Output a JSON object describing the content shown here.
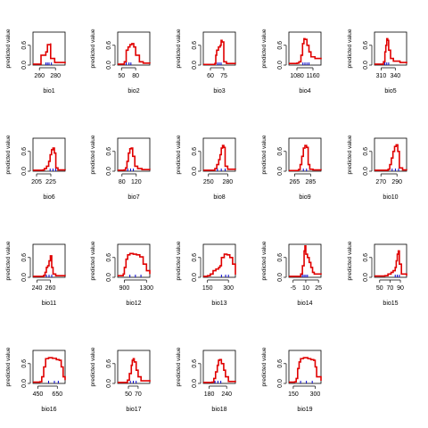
{
  "chart_data": [
    {
      "type": "line",
      "xlabel": "bio1",
      "ylabel": "predicted value",
      "xlim": [
        252,
        292
      ],
      "ylim": [
        0,
        1
      ],
      "xticks": [
        260,
        280
      ],
      "yticks": [
        0.0,
        0.6
      ],
      "x": [
        252,
        260,
        262,
        262,
        268,
        268,
        270,
        270,
        274,
        274,
        279,
        292
      ],
      "y": [
        0.03,
        0.03,
        0.06,
        0.3,
        0.36,
        0.4,
        0.45,
        0.62,
        0.66,
        0.2,
        0.08,
        0.05
      ],
      "rug": [
        268,
        270,
        272,
        275
      ]
    },
    {
      "type": "line",
      "xlabel": "bio2",
      "ylabel": "predicted value",
      "xlim": [
        42,
        110
      ],
      "ylim": [
        0,
        1
      ],
      "xticks": [
        50,
        80
      ],
      "yticks": [
        0.0,
        0.6
      ],
      "x": [
        42,
        53,
        56,
        60,
        64,
        68,
        72,
        76,
        80,
        88,
        96,
        110
      ],
      "y": [
        0.03,
        0.03,
        0.1,
        0.45,
        0.55,
        0.62,
        0.65,
        0.55,
        0.3,
        0.1,
        0.06,
        0.05
      ],
      "rug": [
        60,
        66,
        70
      ]
    },
    {
      "type": "line",
      "xlabel": "bio3",
      "ylabel": "predicted value",
      "xlim": [
        52,
        88
      ],
      "ylim": [
        0,
        1
      ],
      "xticks": [
        60,
        75
      ],
      "yticks": [
        0.0,
        0.6
      ],
      "x": [
        52,
        63,
        65,
        66,
        67,
        69,
        71,
        72,
        73,
        75,
        78,
        88
      ],
      "y": [
        0.02,
        0.02,
        0.05,
        0.3,
        0.45,
        0.55,
        0.6,
        0.75,
        0.7,
        0.1,
        0.05,
        0.04
      ],
      "rug": [
        68,
        70,
        72
      ]
    },
    {
      "type": "line",
      "xlabel": "bio4",
      "ylabel": "predicted value",
      "xlim": [
        1040,
        1200
      ],
      "ylim": [
        0,
        1
      ],
      "xticks": [
        1080,
        1160
      ],
      "yticks": [
        0.0,
        0.6
      ],
      "x": [
        1040,
        1080,
        1090,
        1100,
        1108,
        1115,
        1120,
        1130,
        1140,
        1150,
        1170,
        1200
      ],
      "y": [
        0.05,
        0.06,
        0.1,
        0.3,
        0.65,
        0.8,
        0.78,
        0.6,
        0.4,
        0.25,
        0.2,
        0.18
      ],
      "rug": [
        1110,
        1120,
        1130,
        1140
      ]
    },
    {
      "type": "line",
      "xlabel": "bio5",
      "ylabel": "predicted value",
      "xlim": [
        296,
        364
      ],
      "ylim": [
        0,
        1
      ],
      "xticks": [
        310,
        340
      ],
      "yticks": [
        0.0,
        0.6
      ],
      "x": [
        296,
        313,
        315,
        318,
        320,
        322,
        324,
        326,
        330,
        336,
        350,
        364
      ],
      "y": [
        0.03,
        0.03,
        0.1,
        0.4,
        0.6,
        0.8,
        0.75,
        0.45,
        0.2,
        0.12,
        0.08,
        0.05
      ],
      "rug": [
        318,
        322,
        326
      ]
    },
    {
      "type": "line",
      "xlabel": "bio6",
      "ylabel": "predicted value",
      "xlim": [
        200,
        245
      ],
      "ylim": [
        0,
        1
      ],
      "xticks": [
        205,
        225
      ],
      "yticks": [
        0.0,
        0.6
      ],
      "x": [
        200,
        214,
        216,
        219,
        222,
        224,
        226,
        228,
        230,
        232,
        235,
        245
      ],
      "y": [
        0.03,
        0.04,
        0.08,
        0.15,
        0.3,
        0.5,
        0.65,
        0.7,
        0.55,
        0.1,
        0.04,
        0.03
      ],
      "rug": [
        224,
        228,
        232
      ]
    },
    {
      "type": "line",
      "xlabel": "bio7",
      "ylabel": "predicted value",
      "xlim": [
        68,
        158
      ],
      "ylim": [
        0,
        1
      ],
      "xticks": [
        80,
        120
      ],
      "yticks": [
        0.0,
        0.6
      ],
      "x": [
        68,
        86,
        90,
        94,
        98,
        102,
        106,
        110,
        116,
        124,
        136,
        158
      ],
      "y": [
        0.03,
        0.04,
        0.1,
        0.3,
        0.55,
        0.68,
        0.7,
        0.45,
        0.15,
        0.08,
        0.05,
        0.04
      ],
      "rug": [
        96,
        104,
        112
      ]
    },
    {
      "type": "line",
      "xlabel": "bio8",
      "ylabel": "predicted value",
      "xlim": [
        242,
        292
      ],
      "ylim": [
        0,
        1
      ],
      "xticks": [
        250,
        280
      ],
      "yticks": [
        0.0,
        0.6
      ],
      "x": [
        242,
        258,
        260,
        263,
        266,
        268,
        270,
        272,
        274,
        276,
        280,
        292
      ],
      "y": [
        0.03,
        0.03,
        0.08,
        0.2,
        0.35,
        0.5,
        0.7,
        0.78,
        0.72,
        0.15,
        0.06,
        0.05
      ],
      "rug": [
        264,
        270,
        276
      ]
    },
    {
      "type": "line",
      "xlabel": "bio9",
      "ylabel": "predicted value",
      "xlim": [
        258,
        298
      ],
      "ylim": [
        0,
        1
      ],
      "xticks": [
        265,
        285
      ],
      "yticks": [
        0.0,
        0.6
      ],
      "x": [
        258,
        268,
        270,
        272,
        274,
        276,
        278,
        280,
        282,
        284,
        288,
        298
      ],
      "y": [
        0.02,
        0.02,
        0.05,
        0.2,
        0.45,
        0.7,
        0.78,
        0.72,
        0.2,
        0.06,
        0.04,
        0.03
      ],
      "rug": [
        276,
        280
      ]
    },
    {
      "type": "line",
      "xlabel": "bio10",
      "ylabel": "predicted value",
      "xlim": [
        262,
        302
      ],
      "ylim": [
        0,
        1
      ],
      "xticks": [
        270,
        290
      ],
      "yticks": [
        0.0,
        0.6
      ],
      "x": [
        262,
        277,
        279,
        281,
        283,
        285,
        287,
        289,
        291,
        293,
        297,
        302
      ],
      "y": [
        0.03,
        0.03,
        0.06,
        0.2,
        0.4,
        0.6,
        0.75,
        0.8,
        0.6,
        0.1,
        0.04,
        0.03
      ],
      "rug": [
        284,
        288,
        292
      ]
    },
    {
      "type": "line",
      "xlabel": "bio11",
      "ylabel": "predicted value",
      "xlim": [
        234,
        282
      ],
      "ylim": [
        0,
        1
      ],
      "xticks": [
        240,
        260
      ],
      "yticks": [
        0.0,
        0.6
      ],
      "x": [
        234,
        248,
        250,
        252,
        254,
        256,
        258,
        260,
        262,
        264,
        268,
        282
      ],
      "y": [
        0.03,
        0.03,
        0.06,
        0.15,
        0.3,
        0.35,
        0.5,
        0.65,
        0.3,
        0.1,
        0.05,
        0.04
      ],
      "rug": [
        254,
        258,
        262
      ]
    },
    {
      "type": "line",
      "xlabel": "bio12",
      "ylabel": "predicted value",
      "xlim": [
        780,
        1360
      ],
      "ylim": [
        0,
        1
      ],
      "xticks": [
        900,
        1300
      ],
      "yticks": [
        0.0,
        0.6
      ],
      "x": [
        780,
        860,
        880,
        900,
        930,
        960,
        1000,
        1060,
        1120,
        1180,
        1240,
        1300,
        1360
      ],
      "y": [
        0.05,
        0.05,
        0.1,
        0.3,
        0.55,
        0.68,
        0.72,
        0.7,
        0.68,
        0.62,
        0.4,
        0.2,
        0.1
      ],
      "rug": [
        1000,
        1100,
        1200
      ]
    },
    {
      "type": "line",
      "xlabel": "bio13",
      "ylabel": "predicted value",
      "xlim": [
        120,
        350
      ],
      "ylim": [
        0,
        1
      ],
      "xticks": [
        150,
        300
      ],
      "yticks": [
        0.0,
        0.6
      ],
      "x": [
        120,
        150,
        170,
        190,
        210,
        230,
        240,
        250,
        270,
        290,
        310,
        330,
        350
      ],
      "y": [
        0.03,
        0.05,
        0.1,
        0.2,
        0.25,
        0.3,
        0.35,
        0.6,
        0.7,
        0.68,
        0.6,
        0.4,
        0.08
      ],
      "rug": [
        250,
        280,
        300
      ]
    },
    {
      "type": "line",
      "xlabel": "bio14",
      "ylabel": "predicted value",
      "xlim": [
        -10,
        28
      ],
      "ylim": [
        0,
        1
      ],
      "xticks": [
        -5,
        10,
        25
      ],
      "yticks": [
        0.0,
        0.6
      ],
      "x": [
        -10,
        2,
        4,
        6,
        8,
        9,
        10,
        12,
        14,
        16,
        18,
        20,
        28
      ],
      "y": [
        0.03,
        0.03,
        0.1,
        0.35,
        0.8,
        0.95,
        0.7,
        0.6,
        0.45,
        0.3,
        0.15,
        0.1,
        0.08
      ],
      "rug": [
        6,
        8,
        10,
        12
      ]
    },
    {
      "type": "line",
      "xlabel": "bio15",
      "ylabel": "predicted value",
      "xlim": [
        40,
        102
      ],
      "ylim": [
        0,
        1
      ],
      "xticks": [
        50,
        70,
        90
      ],
      "yticks": [
        0.0,
        0.6
      ],
      "x": [
        40,
        60,
        66,
        72,
        76,
        80,
        82,
        84,
        86,
        88,
        92,
        102
      ],
      "y": [
        0.04,
        0.05,
        0.1,
        0.15,
        0.2,
        0.3,
        0.5,
        0.7,
        0.8,
        0.4,
        0.1,
        0.05
      ],
      "rug": [
        80,
        84,
        88
      ]
    },
    {
      "type": "line",
      "xlabel": "bio16",
      "ylabel": "predicted value",
      "xlim": [
        400,
        730
      ],
      "ylim": [
        0,
        1
      ],
      "xticks": [
        450,
        650
      ],
      "yticks": [
        0.0,
        0.6
      ],
      "x": [
        400,
        470,
        490,
        510,
        530,
        560,
        600,
        640,
        670,
        690,
        710,
        730
      ],
      "y": [
        0.04,
        0.05,
        0.2,
        0.5,
        0.75,
        0.78,
        0.76,
        0.72,
        0.7,
        0.5,
        0.2,
        0.1
      ],
      "rug": [
        560,
        620,
        660
      ]
    },
    {
      "type": "line",
      "xlabel": "bio17",
      "ylabel": "predicted value",
      "xlim": [
        28,
        94
      ],
      "ylim": [
        0,
        1
      ],
      "xticks": [
        50,
        70
      ],
      "yticks": [
        0.0,
        0.6
      ],
      "x": [
        28,
        44,
        48,
        52,
        56,
        58,
        60,
        62,
        66,
        70,
        76,
        94
      ],
      "y": [
        0.03,
        0.03,
        0.1,
        0.3,
        0.55,
        0.7,
        0.75,
        0.65,
        0.4,
        0.2,
        0.08,
        0.05
      ],
      "rug": [
        54,
        60,
        66
      ]
    },
    {
      "type": "line",
      "xlabel": "bio18",
      "ylabel": "predicted value",
      "xlim": [
        160,
        270
      ],
      "ylim": [
        0,
        1
      ],
      "xticks": [
        180,
        240
      ],
      "yticks": [
        0.0,
        0.6
      ],
      "x": [
        160,
        190,
        196,
        202,
        208,
        212,
        216,
        222,
        230,
        236,
        246,
        270
      ],
      "y": [
        0.03,
        0.04,
        0.15,
        0.35,
        0.55,
        0.7,
        0.72,
        0.6,
        0.4,
        0.2,
        0.06,
        0.04
      ],
      "rug": [
        200,
        210,
        220
      ]
    },
    {
      "type": "line",
      "xlabel": "bio19",
      "ylabel": "predicted value",
      "xlim": [
        120,
        340
      ],
      "ylim": [
        0,
        1
      ],
      "xticks": [
        150,
        300
      ],
      "yticks": [
        0.0,
        0.6
      ],
      "x": [
        120,
        160,
        170,
        180,
        190,
        200,
        220,
        250,
        270,
        290,
        300,
        310,
        340
      ],
      "y": [
        0.04,
        0.05,
        0.15,
        0.45,
        0.65,
        0.75,
        0.78,
        0.75,
        0.72,
        0.7,
        0.5,
        0.2,
        0.08
      ],
      "rug": [
        200,
        240,
        280
      ]
    }
  ],
  "colors": {
    "line": "#e00000",
    "rug": "#0000cc",
    "axis": "#000000"
  }
}
